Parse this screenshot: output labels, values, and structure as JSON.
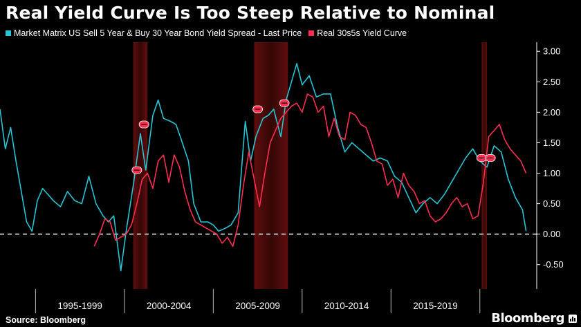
{
  "chart_data": {
    "type": "line",
    "title": "Real Yield Curve Is Too Steep Relative to Nominal",
    "series": [
      {
        "name": "Market Matrix US Sell 5 Year & Buy 30 Year Bond Yield Spread - Last Price",
        "color": "#26c6d6",
        "x": [
          1993.0,
          1993.3,
          1993.6,
          1993.9,
          1994.2,
          1994.5,
          1994.8,
          1995.1,
          1995.4,
          1995.7,
          1996.0,
          1996.4,
          1996.8,
          1997.2,
          1997.6,
          1998.0,
          1998.4,
          1998.8,
          1999.1,
          1999.4,
          1999.8,
          2000.1,
          2000.5,
          2000.9,
          2001.2,
          2001.6,
          2001.9,
          2002.2,
          2002.6,
          2002.9,
          2003.2,
          2003.6,
          2003.9,
          2004.3,
          2004.7,
          2005.0,
          2005.3,
          2005.7,
          2006.0,
          2006.4,
          2006.8,
          2007.1,
          2007.4,
          2007.8,
          2008.1,
          2008.4,
          2008.8,
          2009.1,
          2009.4,
          2009.7,
          2010.0,
          2010.4,
          2010.8,
          2011.2,
          2011.6,
          2012.0,
          2012.4,
          2012.8,
          2013.2,
          2013.6,
          2014.0,
          2014.4,
          2014.8,
          2015.2,
          2015.6,
          2016.0,
          2016.4,
          2016.8,
          2017.2,
          2017.6,
          2018.0,
          2018.4,
          2018.8,
          2019.2,
          2019.6,
          2020.0,
          2020.4,
          2020.8,
          2021.2,
          2021.6,
          2022.0,
          2022.4,
          2022.6
        ],
        "values": [
          2.05,
          1.4,
          1.75,
          1.2,
          0.7,
          0.2,
          0.05,
          0.55,
          0.75,
          0.65,
          0.55,
          0.45,
          0.7,
          0.55,
          0.5,
          0.95,
          0.5,
          0.3,
          0.2,
          0.3,
          -0.6,
          0.05,
          0.8,
          1.65,
          1.05,
          1.95,
          2.2,
          1.9,
          1.85,
          1.8,
          1.55,
          1.2,
          0.5,
          0.2,
          0.2,
          0.15,
          0.05,
          0.1,
          0.15,
          0.35,
          1.85,
          1.2,
          1.6,
          1.9,
          1.95,
          2.05,
          1.6,
          2.2,
          2.5,
          2.8,
          2.45,
          2.6,
          2.25,
          2.3,
          2.3,
          1.75,
          1.35,
          1.5,
          1.4,
          1.3,
          1.2,
          1.25,
          1.2,
          0.95,
          0.85,
          0.6,
          0.35,
          0.5,
          0.6,
          0.5,
          0.65,
          0.85,
          1.05,
          1.25,
          1.4,
          1.2,
          1.1,
          1.45,
          1.35,
          0.9,
          0.6,
          0.4,
          0.05
        ]
      },
      {
        "name": "Real 30s5s Yield Curve",
        "color": "#ff2d4f",
        "x": [
          1998.3,
          1998.6,
          1998.9,
          1999.2,
          1999.5,
          1999.8,
          2000.1,
          2000.4,
          2000.7,
          2001.0,
          2001.3,
          2001.6,
          2001.9,
          2002.2,
          2002.5,
          2002.8,
          2003.1,
          2003.4,
          2003.7,
          2004.0,
          2004.3,
          2004.6,
          2004.9,
          2005.2,
          2005.5,
          2005.8,
          2006.1,
          2006.4,
          2006.7,
          2007.0,
          2007.3,
          2007.6,
          2007.9,
          2008.2,
          2008.5,
          2008.8,
          2009.1,
          2009.4,
          2009.7,
          2010.0,
          2010.3,
          2010.6,
          2010.9,
          2011.2,
          2011.5,
          2011.8,
          2012.1,
          2012.4,
          2012.7,
          2013.0,
          2013.3,
          2013.6,
          2013.9,
          2014.2,
          2014.5,
          2014.8,
          2015.1,
          2015.4,
          2015.7,
          2016.0,
          2016.3,
          2016.6,
          2016.9,
          2017.2,
          2017.5,
          2017.8,
          2018.1,
          2018.4,
          2018.7,
          2019.0,
          2019.3,
          2019.6,
          2019.9,
          2020.2,
          2020.5,
          2020.8,
          2021.1,
          2021.4,
          2021.7,
          2022.0,
          2022.3,
          2022.6
        ],
        "values": [
          -0.2,
          0.0,
          0.25,
          0.2,
          -0.1,
          -0.05,
          0.0,
          0.15,
          0.5,
          0.9,
          1.0,
          0.75,
          1.2,
          1.3,
          0.85,
          1.3,
          1.1,
          0.7,
          0.4,
          0.2,
          0.15,
          0.1,
          0.05,
          0.0,
          -0.15,
          -0.05,
          -0.2,
          0.15,
          0.8,
          1.35,
          0.9,
          0.45,
          1.0,
          1.5,
          1.7,
          1.9,
          2.0,
          2.1,
          2.15,
          2.0,
          2.3,
          2.25,
          2.0,
          2.1,
          1.6,
          1.9,
          1.6,
          1.55,
          2.0,
          1.95,
          1.8,
          1.75,
          1.5,
          1.2,
          1.15,
          0.8,
          0.9,
          0.6,
          1.0,
          0.8,
          0.7,
          0.5,
          0.55,
          0.3,
          0.2,
          0.25,
          0.35,
          0.5,
          0.6,
          0.45,
          0.5,
          0.25,
          0.3,
          0.85,
          1.6,
          1.7,
          1.8,
          1.55,
          1.4,
          1.3,
          1.2,
          1.0
        ]
      }
    ],
    "recession_bands": [
      [
        2000.5,
        2001.3
      ],
      [
        2007.3,
        2009.2
      ],
      [
        2020.1,
        2020.4
      ]
    ],
    "annotations": [
      {
        "x": 2001.1,
        "y": 1.8
      },
      {
        "x": 2000.7,
        "y": 1.05
      },
      {
        "x": 2007.5,
        "y": 2.05
      },
      {
        "x": 2009.0,
        "y": 2.15
      },
      {
        "x": 2020.1,
        "y": 1.25
      },
      {
        "x": 2020.6,
        "y": 1.25
      }
    ],
    "xlim": [
      1993.0,
      2023.2
    ],
    "ylim": [
      -0.9,
      3.15
    ],
    "y_ticks": [
      "3.00",
      "2.50",
      "2.00",
      "1.50",
      "1.00",
      "0.50",
      "0.00",
      "-0.50"
    ],
    "y_tick_values": [
      3.0,
      2.5,
      2.0,
      1.5,
      1.0,
      0.5,
      0.0,
      -0.5
    ],
    "x_periods": [
      "1995-1999",
      "2000-2004",
      "2005-2009",
      "2010-2014",
      "2015-2019"
    ],
    "x_period_ranges": [
      [
        1995,
        2000
      ],
      [
        2000,
        2005
      ],
      [
        2005,
        2010
      ],
      [
        2010,
        2015
      ],
      [
        2015,
        2020
      ]
    ],
    "x_period_dividers": [
      1995.0,
      2000.0,
      2005.0,
      2010.0,
      2015.0,
      2020.0
    ],
    "zero_line": 0.0
  },
  "legend": [
    {
      "label": "Market Matrix US Sell 5 Year & Buy 30 Year Bond Yield Spread - Last Price",
      "color": "#26c6d6"
    },
    {
      "label": "Real 30s5s Yield Curve",
      "color": "#ff2d4f"
    }
  ],
  "footer": {
    "source": "Source: Bloomberg",
    "brand": "Bloomberg"
  }
}
